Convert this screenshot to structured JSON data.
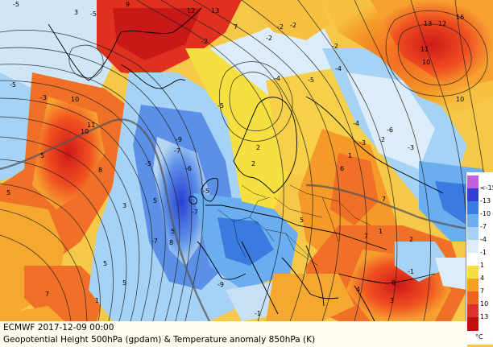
{
  "caption": {
    "line1": "ECMWF 2017-12-09 00:00",
    "line2": "Geopotential Height 500hPa (gpdam) & Temperature anomaly 850hPa (K)"
  },
  "legend": {
    "ticks": [
      "<-15",
      "-13",
      "-10",
      "-7",
      "-4",
      "-1",
      "1",
      "4",
      "7",
      "10",
      "13"
    ],
    "unit": "°C",
    "colors": [
      "#c060e0",
      "#3040d0",
      "#3a7be0",
      "#6aaef0",
      "#a6d2f5",
      "#dcecf8",
      "#ffffff",
      "#f5e040",
      "#f5a020",
      "#f06020",
      "#e03030",
      "#c01010"
    ]
  },
  "map_labels": [
    "-5",
    "3",
    "-5",
    "9",
    "12",
    "13",
    "16",
    "13",
    "-2",
    "-2",
    "-2",
    "7",
    "-2",
    "-5",
    "-3",
    "-2",
    "12",
    "11",
    "10",
    "10",
    "10",
    "11",
    "10",
    "5",
    "8",
    "-5",
    "-4",
    "-6",
    "-4",
    "-5",
    "-5",
    "-9",
    "-7",
    "-6",
    "-7",
    "-9",
    "-7",
    "-5",
    "5",
    "5",
    "8",
    "2",
    "2",
    "7",
    "6",
    "-3",
    "-2",
    "1",
    "1",
    "2",
    "0",
    "-1",
    "-4",
    "-3",
    "5",
    "5",
    "1",
    "-1",
    "4",
    "3",
    "7",
    "3",
    "5",
    "5",
    "7"
  ]
}
